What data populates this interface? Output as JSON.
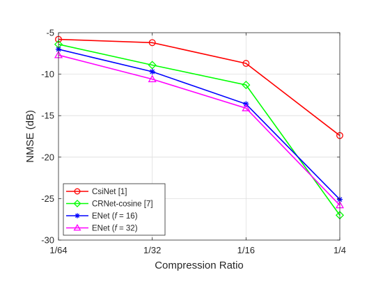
{
  "chart_data": {
    "type": "line",
    "xlabel": "Compression Ratio",
    "ylabel": "NMSE (dB)",
    "categories": [
      "1/64",
      "1/32",
      "1/16",
      "1/4"
    ],
    "y_ticks": [
      "-5",
      "-10",
      "-15",
      "-20",
      "-25",
      "-30"
    ],
    "y_tick_values": [
      -5,
      -10,
      -15,
      -20,
      -25,
      -30
    ],
    "ylim": [
      -30,
      -5
    ],
    "grid": true,
    "legend_position": "bottom-left",
    "series": [
      {
        "name": "CsiNet [1]",
        "color": "#ff0000",
        "marker": "circle",
        "values": [
          -5.8,
          -6.2,
          -8.7,
          -17.4
        ]
      },
      {
        "name": "CRNet-cosine [7]",
        "color": "#00ff00",
        "marker": "diamond",
        "values": [
          -6.4,
          -8.9,
          -11.3,
          -27.0
        ]
      },
      {
        "name_parts": [
          "ENet (",
          "f",
          " = 16)"
        ],
        "color": "#0000ff",
        "marker": "star",
        "values": [
          -7.0,
          -9.7,
          -13.6,
          -25.1
        ]
      },
      {
        "name_parts": [
          "ENet (",
          "f",
          " = 32)"
        ],
        "color": "#ff00ff",
        "marker": "triangle",
        "values": [
          -7.7,
          -10.6,
          -14.1,
          -25.8
        ]
      }
    ]
  }
}
